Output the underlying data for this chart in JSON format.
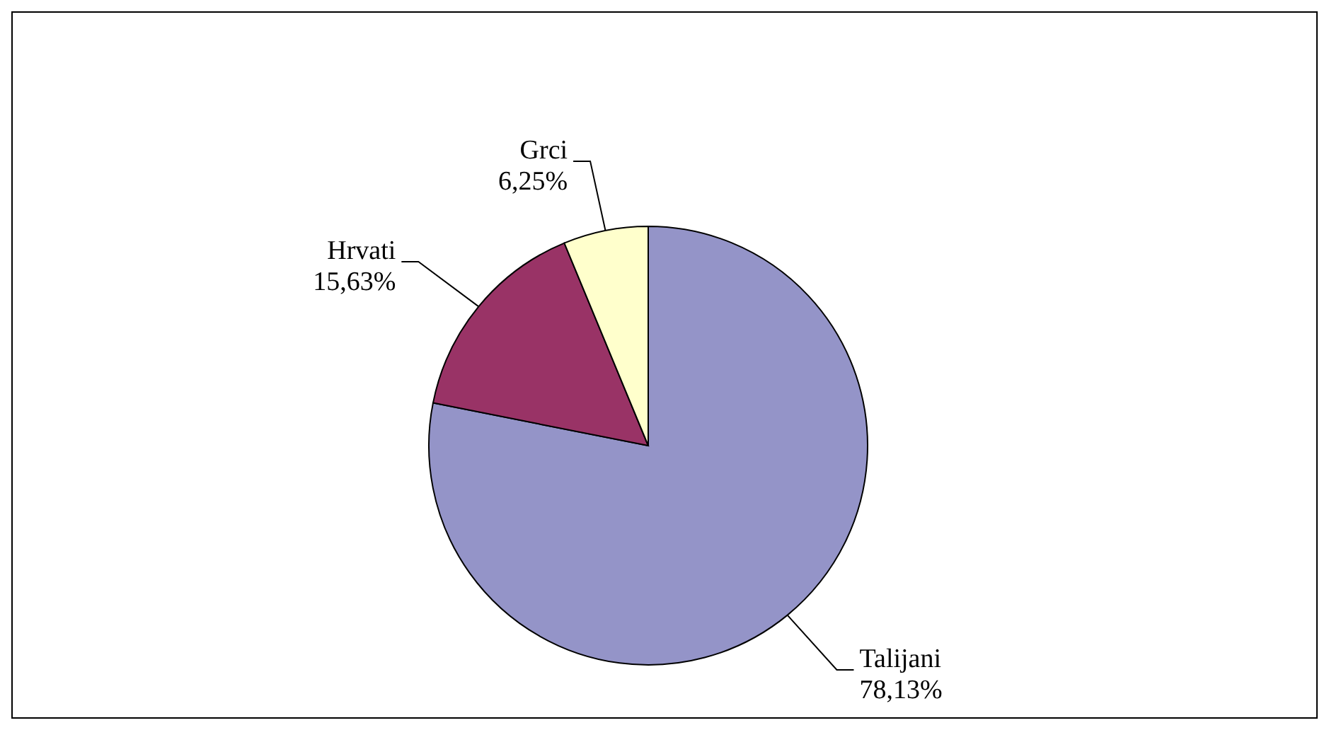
{
  "chart_data": {
    "type": "pie",
    "categories": [
      "Talijani",
      "Hrvati",
      "Grci"
    ],
    "values": [
      78.13,
      15.63,
      6.25
    ],
    "value_labels": [
      "78,13%",
      "15,63%",
      "6,25%"
    ],
    "colors": [
      "#9494c8",
      "#993366",
      "#ffffcc"
    ],
    "legend": false
  }
}
